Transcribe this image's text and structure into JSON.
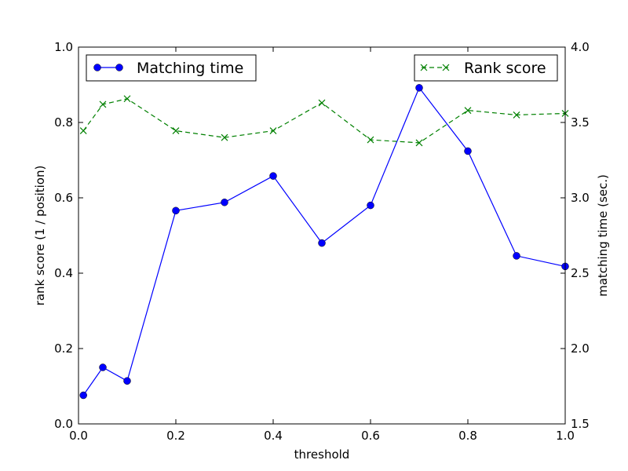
{
  "chart_data": {
    "type": "line",
    "xlabel": "threshold",
    "ylabel_left": "rank score (1 / position)",
    "ylabel_right": "matching time (sec.)",
    "xlim": [
      0.0,
      1.0
    ],
    "ylim_left": [
      0.0,
      1.0
    ],
    "ylim_right": [
      1.5,
      4.0
    ],
    "x_ticks": [
      "0.0",
      "0.2",
      "0.4",
      "0.6",
      "0.8",
      "1.0"
    ],
    "y_left_ticks": [
      "0.0",
      "0.2",
      "0.4",
      "0.6",
      "0.8",
      "1.0"
    ],
    "y_right_ticks": [
      "1.5",
      "2.0",
      "2.5",
      "3.0",
      "3.5",
      "4.0"
    ],
    "grid": false,
    "series": [
      {
        "name": "Matching time",
        "axis": "right",
        "color": "#0000ff",
        "line_style": "solid",
        "marker": "circle",
        "legend_position": "top-left",
        "x": [
          0.01,
          0.05,
          0.1,
          0.2,
          0.3,
          0.4,
          0.5,
          0.6,
          0.7,
          0.8,
          0.9,
          1.0
        ],
        "y": [
          1.69,
          1.875,
          1.785,
          2.915,
          2.97,
          3.145,
          2.7,
          2.95,
          3.73,
          3.31,
          2.615,
          2.545
        ]
      },
      {
        "name": "Rank score",
        "axis": "left",
        "color": "#008000",
        "line_style": "dashed",
        "marker": "x",
        "legend_position": "top-right",
        "x": [
          0.01,
          0.05,
          0.1,
          0.2,
          0.3,
          0.4,
          0.5,
          0.6,
          0.7,
          0.8,
          0.9,
          1.0
        ],
        "y": [
          0.778,
          0.848,
          0.863,
          0.778,
          0.76,
          0.778,
          0.852,
          0.754,
          0.746,
          0.832,
          0.82,
          0.824
        ]
      }
    ]
  }
}
